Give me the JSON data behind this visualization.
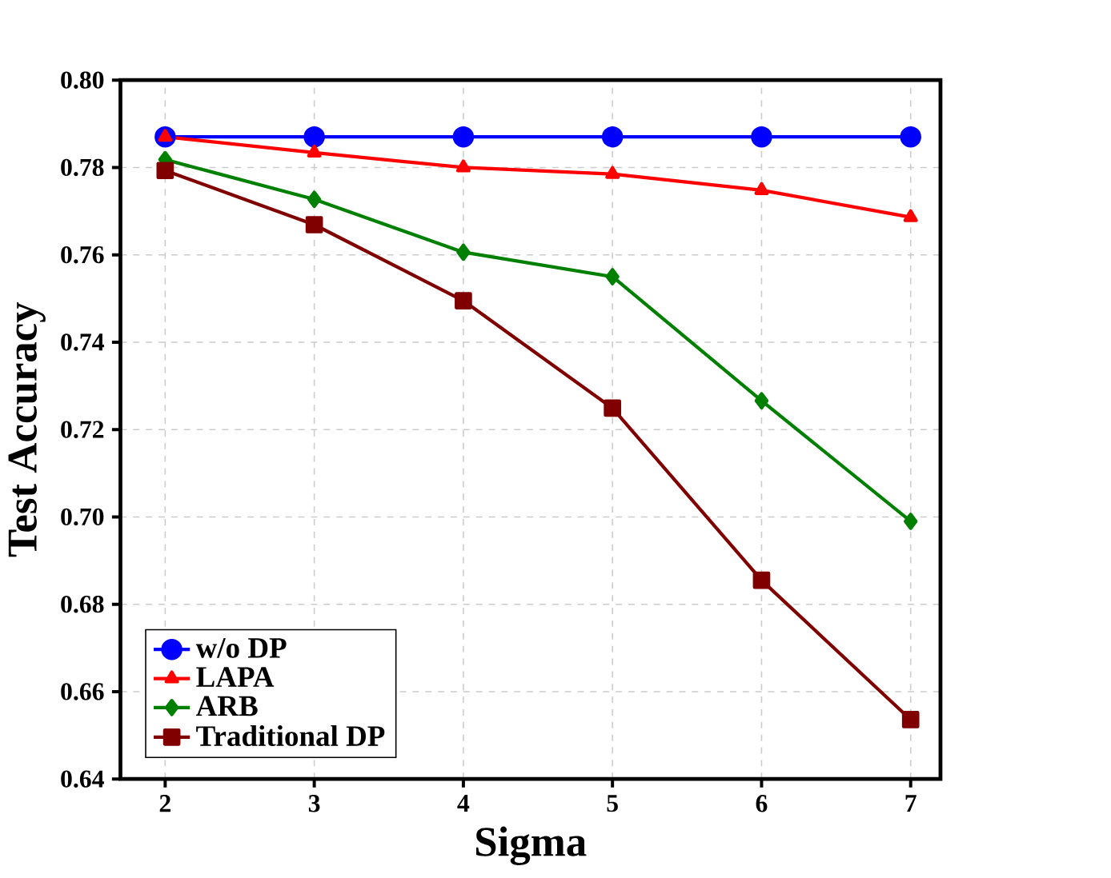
{
  "chart_data": {
    "type": "line",
    "xlabel": "Sigma",
    "ylabel": "Test Accuracy",
    "x": [
      2,
      3,
      4,
      5,
      6,
      7
    ],
    "xlim": [
      1.7,
      7.2
    ],
    "xticks": [
      2,
      3,
      4,
      5,
      6,
      7
    ],
    "ylim": [
      0.64,
      0.8
    ],
    "yticks": [
      {
        "value": 0.64,
        "label": "0.64"
      },
      {
        "value": 0.66,
        "label": "0.66"
      },
      {
        "value": 0.68,
        "label": "0.68"
      },
      {
        "value": 0.7,
        "label": "0.70"
      },
      {
        "value": 0.72,
        "label": "0.72"
      },
      {
        "value": 0.74,
        "label": "0.74"
      },
      {
        "value": 0.76,
        "label": "0.76"
      },
      {
        "value": 0.78,
        "label": "0.78"
      },
      {
        "value": 0.8,
        "label": "0.80"
      }
    ],
    "grid": true,
    "legend": "bottom left",
    "line_style": "solid",
    "series": [
      {
        "name": "w/o DP",
        "color": "#0000ff",
        "marker": "circle",
        "values": [
          0.787,
          0.787,
          0.787,
          0.787,
          0.787,
          0.787
        ]
      },
      {
        "name": "LAPA",
        "color": "#ff0000",
        "marker": "triangle",
        "values": [
          0.787,
          0.7834,
          0.78,
          0.7785,
          0.7748,
          0.7686
        ]
      },
      {
        "name": "ARB",
        "color": "#008000",
        "marker": "diamond",
        "values": [
          0.7818,
          0.7727,
          0.7606,
          0.755,
          0.7266,
          0.699
        ]
      },
      {
        "name": "Traditional DP",
        "color": "#800000",
        "marker": "square",
        "values": [
          0.7793,
          0.7669,
          0.7495,
          0.7249,
          0.6855,
          0.6536
        ]
      }
    ]
  }
}
